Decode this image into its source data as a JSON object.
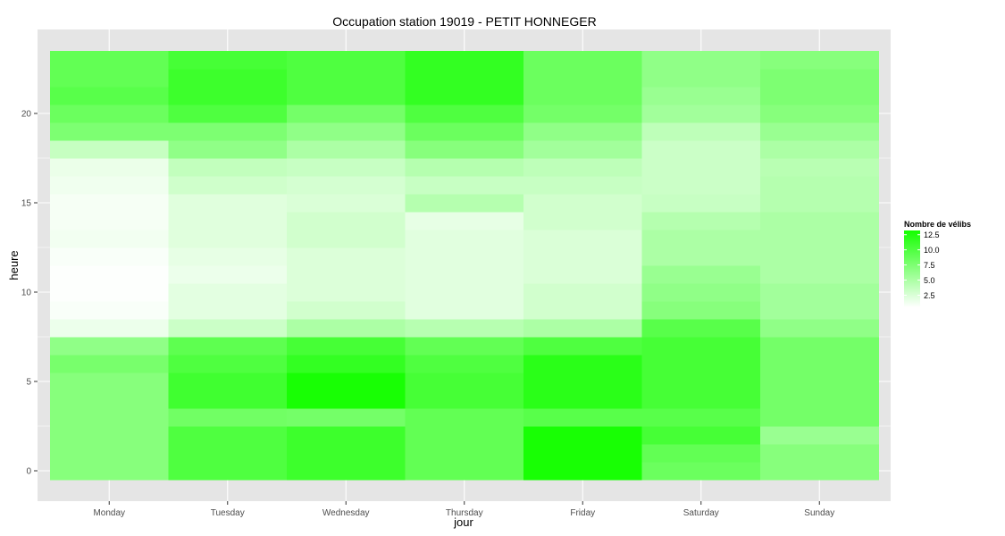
{
  "chart_data": {
    "type": "heatmap",
    "title": "Occupation station 19019 - PETIT HONNEGER",
    "xlabel": "jour",
    "ylabel": "heure",
    "x_categories": [
      "Monday",
      "Tuesday",
      "Wednesday",
      "Thursday",
      "Friday",
      "Saturday",
      "Sunday"
    ],
    "y_range": [
      -0.5,
      23.5
    ],
    "y_ticks": [
      0,
      5,
      10,
      15,
      20
    ],
    "y_tick_labels": [
      "0",
      "5",
      "10",
      "15",
      "20"
    ],
    "values_by_day": [
      {
        "day": "Monday",
        "hours": [
          7.0,
          7.0,
          7.0,
          7.0,
          7.0,
          7.0,
          7.8,
          6.5,
          1.5,
          0.8,
          0.6,
          0.6,
          0.8,
          1.2,
          1.0,
          1.0,
          1.3,
          1.6,
          3.6,
          7.5,
          8.5,
          9.5,
          9.0,
          9.0
        ]
      },
      {
        "day": "Tuesday",
        "hours": [
          10.0,
          10.0,
          10.0,
          8.2,
          10.8,
          10.8,
          10.0,
          9.2,
          3.3,
          2.0,
          2.0,
          1.5,
          1.8,
          2.2,
          2.2,
          2.2,
          3.1,
          3.8,
          6.5,
          7.5,
          10.0,
          11.0,
          11.0,
          10.5
        ]
      },
      {
        "day": "Wednesday",
        "hours": [
          11.0,
          11.0,
          11.0,
          8.0,
          13.0,
          13.0,
          11.5,
          10.5,
          5.0,
          3.0,
          2.4,
          2.4,
          2.4,
          3.0,
          3.0,
          2.5,
          2.8,
          3.5,
          5.0,
          6.5,
          8.0,
          10.0,
          10.0,
          10.0
        ]
      },
      {
        "day": "Thursday",
        "hours": [
          9.0,
          9.0,
          9.0,
          9.0,
          10.5,
          10.5,
          10.0,
          9.0,
          4.4,
          2.1,
          2.1,
          2.1,
          2.1,
          2.1,
          1.8,
          4.5,
          3.5,
          4.5,
          7.0,
          8.5,
          10.0,
          11.5,
          11.5,
          11.5
        ]
      },
      {
        "day": "Friday",
        "hours": [
          13.0,
          13.0,
          13.0,
          9.5,
          12.0,
          12.0,
          12.0,
          10.0,
          5.0,
          3.0,
          3.0,
          2.5,
          2.5,
          2.5,
          3.0,
          3.0,
          3.5,
          4.0,
          5.5,
          6.5,
          8.0,
          8.5,
          8.5,
          8.5
        ]
      },
      {
        "day": "Saturday",
        "hours": [
          8.5,
          9.0,
          10.5,
          9.5,
          10.5,
          10.5,
          10.5,
          10.5,
          9.5,
          7.0,
          6.5,
          6.0,
          5.0,
          5.0,
          4.5,
          3.5,
          3.3,
          3.3,
          3.3,
          4.0,
          5.5,
          6.0,
          6.5,
          6.5
        ]
      },
      {
        "day": "Sunday",
        "hours": [
          7.0,
          7.0,
          6.0,
          8.0,
          8.0,
          8.0,
          8.0,
          8.0,
          6.5,
          5.5,
          5.5,
          5.0,
          5.0,
          5.0,
          5.0,
          4.5,
          4.5,
          4.3,
          5.0,
          6.0,
          7.0,
          7.5,
          7.5,
          7.0
        ]
      }
    ],
    "color_scale": {
      "low_color": "#ffffff",
      "high_color": "#14ff00",
      "min": 0.5,
      "max": 13.2
    },
    "legend": {
      "title": "Nombre de vélibs",
      "ticks": [
        12.5,
        10.0,
        7.5,
        5.0,
        2.5
      ],
      "tick_labels": [
        "12.5",
        "10.0",
        "7.5",
        "5.0",
        "2.5"
      ],
      "position": "right"
    },
    "panel_background": "#e5e5e5",
    "grid_color": "#ffffff",
    "grid": true
  }
}
